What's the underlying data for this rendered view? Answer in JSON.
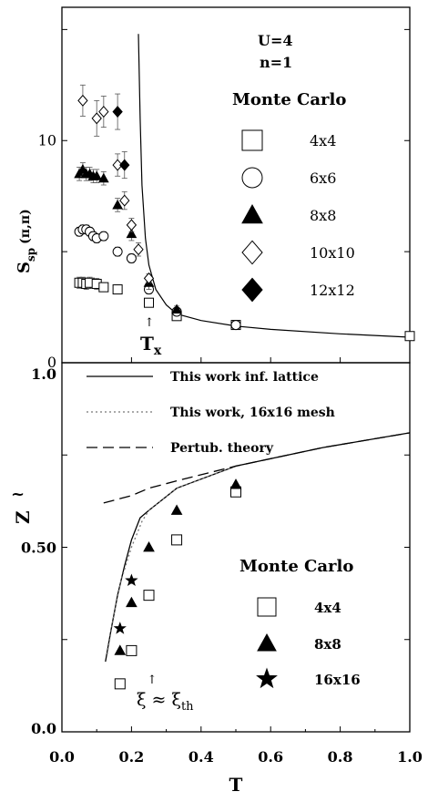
{
  "chart_data": [
    {
      "type": "scatter",
      "ylabel_main": "S",
      "ylabel_sub": "sp",
      "ylabel_arg": "(π,π)",
      "xlim": [
        0,
        1.0
      ],
      "ylim": [
        0,
        16
      ],
      "yticks": [
        "0",
        "10"
      ],
      "params": [
        "U=4",
        "n=1"
      ],
      "legend_title": "Monte Carlo",
      "annotation": {
        "text": "T",
        "subscript": "x",
        "arrow": "↑",
        "x": 0.25
      },
      "curve": {
        "x": [
          0.22,
          0.225,
          0.23,
          0.24,
          0.25,
          0.27,
          0.3,
          0.33,
          0.4,
          0.5,
          0.6,
          0.8,
          1.0
        ],
        "y": [
          14.8,
          11.0,
          8.0,
          5.6,
          4.4,
          3.3,
          2.6,
          2.2,
          1.9,
          1.65,
          1.5,
          1.3,
          1.15
        ]
      },
      "series": [
        {
          "name": "4x4",
          "marker": "square-open",
          "x": [
            0.05,
            0.06,
            0.07,
            0.08,
            0.1,
            0.12,
            0.16,
            0.25,
            0.33,
            0.5,
            1.0
          ],
          "y": [
            3.6,
            3.6,
            3.55,
            3.6,
            3.55,
            3.4,
            3.3,
            2.7,
            2.1,
            1.7,
            1.2
          ],
          "err": [
            0.25,
            0.25,
            0.25,
            0.25,
            0.25,
            0.2,
            0.2,
            0.15,
            0.1,
            0.1,
            0.1
          ]
        },
        {
          "name": "6x6",
          "marker": "circle-open",
          "x": [
            0.05,
            0.06,
            0.07,
            0.08,
            0.09,
            0.1,
            0.12,
            0.16,
            0.2,
            0.25,
            0.33,
            0.5
          ],
          "y": [
            5.9,
            6.0,
            6.0,
            5.9,
            5.7,
            5.6,
            5.7,
            5.0,
            4.7,
            3.3,
            2.3,
            1.7
          ],
          "err": [
            0.2,
            0.2,
            0.2,
            0.2,
            0.2,
            0.2,
            0.2,
            0.2,
            0.2,
            0.2,
            0.1,
            0.1
          ]
        },
        {
          "name": "8x8",
          "marker": "triangle-filled",
          "x": [
            0.05,
            0.06,
            0.07,
            0.08,
            0.09,
            0.1,
            0.12,
            0.16,
            0.2,
            0.25,
            0.33
          ],
          "y": [
            8.5,
            8.7,
            8.5,
            8.5,
            8.4,
            8.4,
            8.3,
            7.1,
            5.8,
            3.6,
            2.4
          ],
          "err": [
            0.3,
            0.3,
            0.3,
            0.3,
            0.3,
            0.3,
            0.3,
            0.3,
            0.3,
            0.3,
            0.15
          ]
        },
        {
          "name": "10x10",
          "marker": "diamond-open",
          "x": [
            0.06,
            0.1,
            0.12,
            0.16,
            0.18,
            0.2,
            0.22,
            0.25
          ],
          "y": [
            11.8,
            11.0,
            11.3,
            8.9,
            7.3,
            6.2,
            5.1,
            3.8
          ],
          "err": [
            0.7,
            0.8,
            0.7,
            0.5,
            0.4,
            0.3,
            0.3,
            0.2
          ]
        },
        {
          "name": "12x12",
          "marker": "diamond-filled",
          "x": [
            0.16,
            0.18
          ],
          "y": [
            11.3,
            8.9
          ],
          "err": [
            0.8,
            0.6
          ]
        }
      ]
    },
    {
      "type": "line",
      "xlabel": "T",
      "ylabel": "Z",
      "ylabel_accent": "~",
      "xlim": [
        0,
        1.0
      ],
      "ylim": [
        0,
        1.0
      ],
      "xticks": [
        "0.0",
        "0.2",
        "0.4",
        "0.6",
        "0.8",
        "1.0"
      ],
      "yticks": [
        "0.0",
        "0.50",
        "1.0"
      ],
      "legend_title": "Monte Carlo",
      "annotation": {
        "text": "ξ ≈ ξ",
        "subscript": "th",
        "arrow": "↑",
        "x": 0.25
      },
      "lines": [
        {
          "name": "This work inf. lattice",
          "style": "solid",
          "x": [
            0.125,
            0.14,
            0.16,
            0.18,
            0.2,
            0.225,
            0.25,
            0.33,
            0.5,
            0.75,
            1.0
          ],
          "y": [
            0.19,
            0.27,
            0.37,
            0.45,
            0.52,
            0.58,
            0.6,
            0.66,
            0.72,
            0.77,
            0.81
          ]
        },
        {
          "name": "This work, 16x16 mesh",
          "style": "dotted",
          "x": [
            0.13,
            0.15,
            0.17,
            0.2,
            0.23,
            0.25,
            0.33,
            0.5
          ],
          "y": [
            0.21,
            0.32,
            0.41,
            0.5,
            0.57,
            0.6,
            0.66,
            0.72
          ]
        },
        {
          "name": "Pertub. theory",
          "style": "dashed",
          "x": [
            0.12,
            0.2,
            0.25,
            0.33,
            0.5,
            0.75,
            1.0
          ],
          "y": [
            0.62,
            0.64,
            0.66,
            0.68,
            0.72,
            0.77,
            0.81
          ]
        }
      ],
      "series": [
        {
          "name": "4x4",
          "marker": "square-open",
          "x": [
            0.167,
            0.2,
            0.25,
            0.33,
            0.5
          ],
          "y": [
            0.13,
            0.22,
            0.37,
            0.52,
            0.65
          ]
        },
        {
          "name": "8x8",
          "marker": "triangle-filled",
          "x": [
            0.167,
            0.2,
            0.25,
            0.33,
            0.5
          ],
          "y": [
            0.22,
            0.35,
            0.5,
            0.6,
            0.67
          ]
        },
        {
          "name": "16x16",
          "marker": "star-filled",
          "x": [
            0.167,
            0.2
          ],
          "y": [
            0.28,
            0.41
          ]
        }
      ]
    }
  ]
}
